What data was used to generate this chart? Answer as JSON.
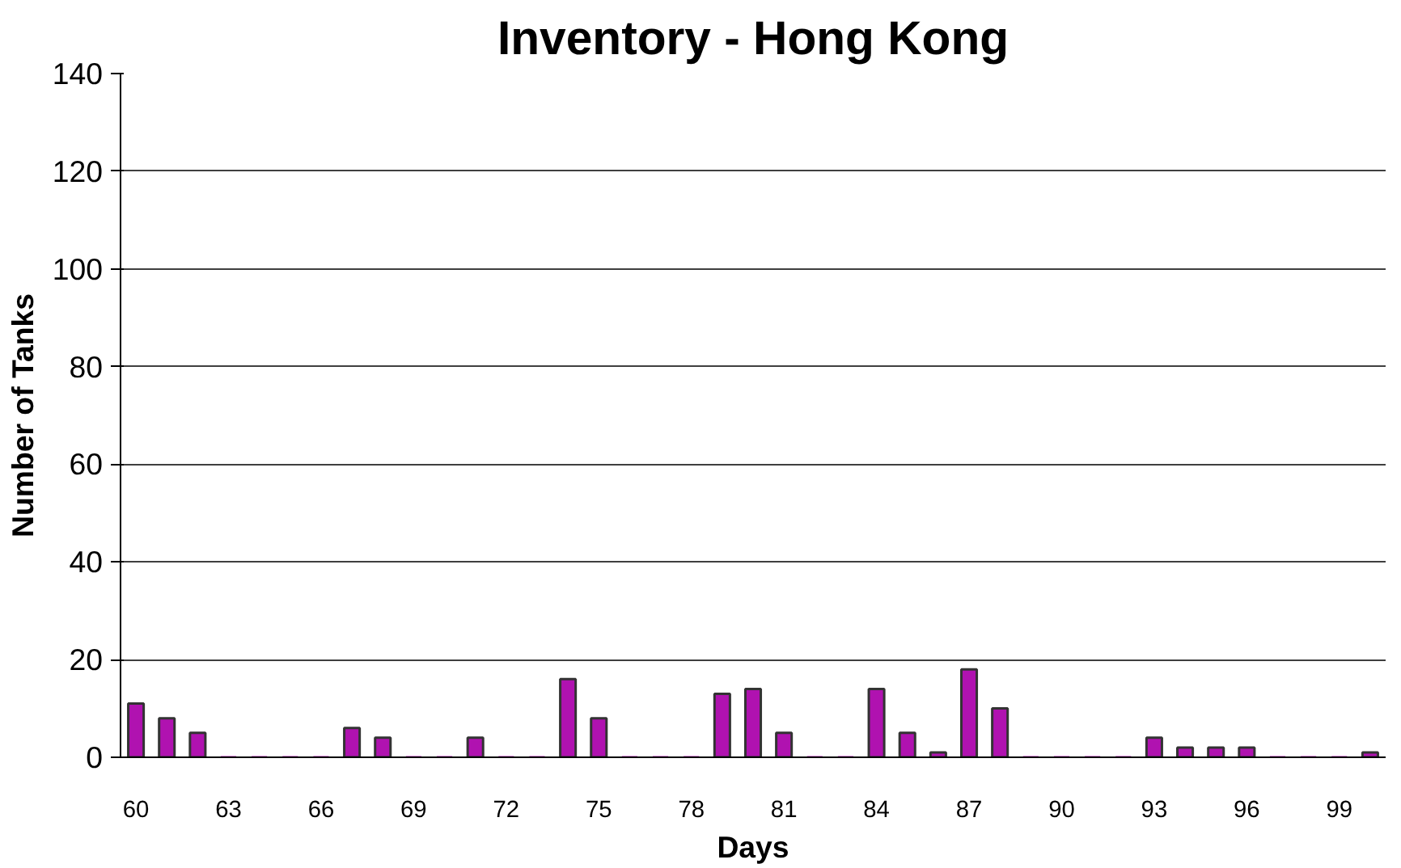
{
  "chart_data": {
    "type": "bar",
    "title": "Inventory - Hong Kong",
    "xlabel": "Days",
    "ylabel": "Number of Tanks",
    "categories": [
      "60",
      null,
      null,
      "63",
      null,
      null,
      "66",
      null,
      null,
      "69",
      null,
      null,
      "72",
      null,
      null,
      "75",
      null,
      null,
      "78",
      null,
      null,
      "81",
      null,
      null,
      "84",
      null,
      null,
      "87",
      null,
      null,
      "90",
      null,
      null,
      "93",
      null,
      null,
      "96",
      null,
      null,
      "99",
      null
    ],
    "values": [
      11,
      8,
      5,
      0,
      0,
      0,
      0,
      6,
      4,
      0,
      0,
      4,
      0,
      0,
      16,
      8,
      0,
      0,
      0,
      13,
      14,
      5,
      0,
      0,
      14,
      5,
      1,
      18,
      10,
      0,
      0,
      0,
      0,
      4,
      2,
      2,
      2,
      0,
      0,
      0,
      1
    ],
    "color": "#b012b0",
    "ylim": [
      0,
      140
    ],
    "yticks": [
      0,
      20,
      40,
      60,
      80,
      100,
      120,
      140
    ],
    "grid": "y"
  }
}
